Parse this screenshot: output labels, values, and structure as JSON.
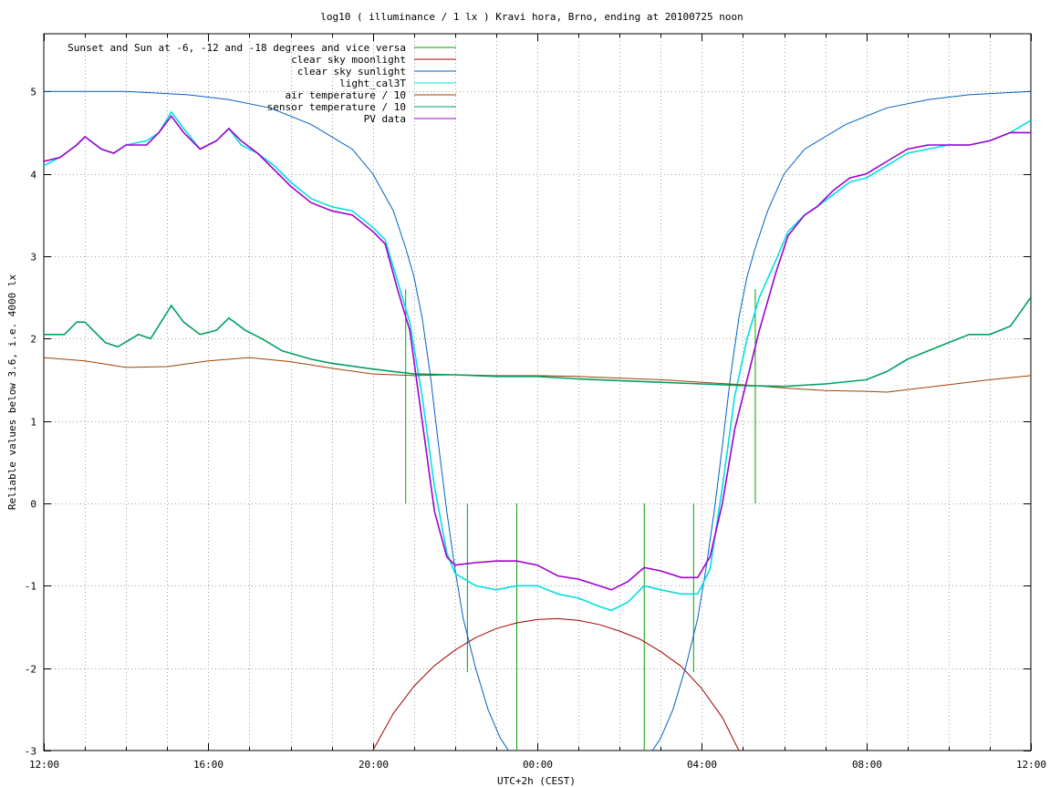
{
  "chart_data": {
    "type": "line",
    "title": "log10 ( illuminance / 1 lx ) Kravi hora, Brno, ending at 20100725 noon",
    "xlabel": "UTC+2h (CEST)",
    "ylabel": "Reliable values below 3.6, i.e. 4000 lx",
    "xlim": [
      12,
      36
    ],
    "ylim": [
      -3,
      5.7
    ],
    "x_ticks": [
      {
        "v": 12,
        "label": "12:00"
      },
      {
        "v": 16,
        "label": "16:00"
      },
      {
        "v": 20,
        "label": "20:00"
      },
      {
        "v": 24,
        "label": "00:00"
      },
      {
        "v": 28,
        "label": "04:00"
      },
      {
        "v": 32,
        "label": "08:00"
      },
      {
        "v": 36,
        "label": "12:00"
      }
    ],
    "x_minor_step": 1,
    "y_ticks": [
      {
        "v": 5,
        "label": "5"
      },
      {
        "v": 4,
        "label": "4"
      },
      {
        "v": 3,
        "label": "3"
      },
      {
        "v": 2,
        "label": "2"
      },
      {
        "v": 1,
        "label": "1"
      },
      {
        "v": 0,
        "label": "0"
      },
      {
        "v": -1,
        "label": "-1"
      },
      {
        "v": -2,
        "label": "-2"
      },
      {
        "v": -3,
        "label": "-3"
      }
    ],
    "grid": true,
    "legend_position": "top-left",
    "series": [
      {
        "name": "Sunset and Sun at -6, -12 and -18 degrees and vice versa",
        "color": "#00a000",
        "kind": "impulses",
        "points": [
          [
            20.8,
            2.6
          ],
          [
            22.3,
            -2.05
          ],
          [
            23.5,
            -3.0
          ],
          [
            26.6,
            -3.0
          ],
          [
            27.8,
            -2.05
          ],
          [
            29.3,
            2.6
          ]
        ]
      },
      {
        "name": "clear sky moonlight",
        "color": "#a00000",
        "kind": "line",
        "points": [
          [
            20.0,
            -3.0
          ],
          [
            20.5,
            -2.55
          ],
          [
            21.0,
            -2.22
          ],
          [
            21.5,
            -1.97
          ],
          [
            22.0,
            -1.78
          ],
          [
            22.5,
            -1.63
          ],
          [
            23.0,
            -1.52
          ],
          [
            23.5,
            -1.45
          ],
          [
            24.0,
            -1.41
          ],
          [
            24.5,
            -1.4
          ],
          [
            25.0,
            -1.42
          ],
          [
            25.5,
            -1.47
          ],
          [
            26.0,
            -1.55
          ],
          [
            26.5,
            -1.65
          ],
          [
            27.0,
            -1.8
          ],
          [
            27.5,
            -1.98
          ],
          [
            28.0,
            -2.25
          ],
          [
            28.5,
            -2.6
          ],
          [
            28.9,
            -3.0
          ]
        ]
      },
      {
        "name": "clear sky sunlight",
        "color": "#0060c0",
        "kind": "line",
        "points": [
          [
            12.0,
            5.0
          ],
          [
            14.0,
            5.0
          ],
          [
            15.5,
            4.96
          ],
          [
            16.5,
            4.9
          ],
          [
            17.5,
            4.8
          ],
          [
            18.5,
            4.6
          ],
          [
            19.5,
            4.3
          ],
          [
            20.0,
            4.0
          ],
          [
            20.5,
            3.55
          ],
          [
            20.8,
            3.1
          ],
          [
            21.0,
            2.75
          ],
          [
            21.2,
            2.25
          ],
          [
            21.4,
            1.55
          ],
          [
            21.6,
            0.7
          ],
          [
            21.8,
            -0.1
          ],
          [
            22.0,
            -0.8
          ],
          [
            22.2,
            -1.4
          ],
          [
            22.5,
            -2.0
          ],
          [
            22.8,
            -2.5
          ],
          [
            23.1,
            -2.85
          ],
          [
            23.3,
            -3.0
          ]
        ],
        "points2": [
          [
            26.8,
            -3.0
          ],
          [
            27.0,
            -2.85
          ],
          [
            27.3,
            -2.5
          ],
          [
            27.6,
            -2.0
          ],
          [
            27.9,
            -1.4
          ],
          [
            28.1,
            -0.8
          ],
          [
            28.3,
            -0.1
          ],
          [
            28.5,
            0.7
          ],
          [
            28.7,
            1.55
          ],
          [
            28.9,
            2.25
          ],
          [
            29.1,
            2.75
          ],
          [
            29.3,
            3.1
          ],
          [
            29.6,
            3.55
          ],
          [
            30.0,
            4.0
          ],
          [
            30.5,
            4.3
          ],
          [
            31.5,
            4.6
          ],
          [
            32.5,
            4.8
          ],
          [
            33.5,
            4.9
          ],
          [
            34.5,
            4.96
          ],
          [
            36.0,
            5.0
          ]
        ]
      },
      {
        "name": "light_cal3T",
        "color": "#00e0e0",
        "kind": "line",
        "points": [
          [
            12.0,
            4.1
          ],
          [
            12.4,
            4.2
          ],
          [
            12.8,
            4.35
          ],
          [
            13.0,
            4.45
          ],
          [
            13.4,
            4.3
          ],
          [
            13.7,
            4.25
          ],
          [
            14.0,
            4.35
          ],
          [
            14.5,
            4.4
          ],
          [
            14.8,
            4.5
          ],
          [
            15.1,
            4.75
          ],
          [
            15.4,
            4.55
          ],
          [
            15.8,
            4.3
          ],
          [
            16.2,
            4.4
          ],
          [
            16.5,
            4.55
          ],
          [
            16.8,
            4.35
          ],
          [
            17.2,
            4.25
          ],
          [
            17.6,
            4.1
          ],
          [
            18.0,
            3.9
          ],
          [
            18.5,
            3.7
          ],
          [
            19.0,
            3.6
          ],
          [
            19.5,
            3.55
          ],
          [
            20.0,
            3.35
          ],
          [
            20.3,
            3.2
          ],
          [
            20.6,
            2.7
          ],
          [
            20.9,
            2.2
          ],
          [
            21.2,
            1.3
          ],
          [
            21.5,
            0.2
          ],
          [
            21.8,
            -0.6
          ],
          [
            22.0,
            -0.85
          ],
          [
            22.5,
            -1.0
          ],
          [
            23.0,
            -1.05
          ],
          [
            23.5,
            -1.0
          ],
          [
            24.0,
            -1.0
          ],
          [
            24.5,
            -1.1
          ],
          [
            25.0,
            -1.15
          ],
          [
            25.5,
            -1.25
          ],
          [
            25.8,
            -1.3
          ],
          [
            26.2,
            -1.2
          ],
          [
            26.6,
            -1.0
          ],
          [
            27.0,
            -1.05
          ],
          [
            27.5,
            -1.1
          ],
          [
            27.9,
            -1.1
          ],
          [
            28.2,
            -0.8
          ],
          [
            28.5,
            0.2
          ],
          [
            28.8,
            1.3
          ],
          [
            29.1,
            2.0
          ],
          [
            29.4,
            2.5
          ],
          [
            29.8,
            2.95
          ],
          [
            30.1,
            3.3
          ],
          [
            30.5,
            3.5
          ],
          [
            30.8,
            3.6
          ],
          [
            31.2,
            3.75
          ],
          [
            31.6,
            3.9
          ],
          [
            32.0,
            3.95
          ],
          [
            32.5,
            4.1
          ],
          [
            33.0,
            4.25
          ],
          [
            33.5,
            4.3
          ],
          [
            34.0,
            4.35
          ],
          [
            34.5,
            4.35
          ],
          [
            35.0,
            4.4
          ],
          [
            35.5,
            4.5
          ],
          [
            36.0,
            4.65
          ]
        ]
      },
      {
        "name": "air temperature / 10",
        "color": "#a04000",
        "kind": "line",
        "points": [
          [
            12.0,
            1.77
          ],
          [
            13.0,
            1.73
          ],
          [
            14.0,
            1.65
          ],
          [
            15.0,
            1.66
          ],
          [
            16.0,
            1.73
          ],
          [
            17.0,
            1.77
          ],
          [
            18.0,
            1.72
          ],
          [
            19.0,
            1.64
          ],
          [
            20.0,
            1.57
          ],
          [
            21.0,
            1.55
          ],
          [
            22.0,
            1.56
          ],
          [
            23.0,
            1.55
          ],
          [
            24.0,
            1.55
          ],
          [
            25.0,
            1.54
          ],
          [
            26.0,
            1.52
          ],
          [
            27.0,
            1.5
          ],
          [
            28.0,
            1.47
          ],
          [
            29.0,
            1.44
          ],
          [
            30.0,
            1.4
          ],
          [
            31.0,
            1.37
          ],
          [
            32.0,
            1.36
          ],
          [
            32.5,
            1.35
          ],
          [
            33.0,
            1.38
          ],
          [
            34.0,
            1.44
          ],
          [
            35.0,
            1.5
          ],
          [
            36.0,
            1.55
          ]
        ]
      },
      {
        "name": "sensor temperature / 10",
        "color": "#00a060",
        "kind": "line",
        "points": [
          [
            12.0,
            2.05
          ],
          [
            12.5,
            2.05
          ],
          [
            12.8,
            2.2
          ],
          [
            13.0,
            2.2
          ],
          [
            13.5,
            1.95
          ],
          [
            13.8,
            1.9
          ],
          [
            14.3,
            2.05
          ],
          [
            14.6,
            2.0
          ],
          [
            15.1,
            2.4
          ],
          [
            15.4,
            2.2
          ],
          [
            15.8,
            2.05
          ],
          [
            16.2,
            2.1
          ],
          [
            16.5,
            2.25
          ],
          [
            16.9,
            2.1
          ],
          [
            17.3,
            2.0
          ],
          [
            17.8,
            1.85
          ],
          [
            18.5,
            1.75
          ],
          [
            19.0,
            1.7
          ],
          [
            20.0,
            1.63
          ],
          [
            21.0,
            1.57
          ],
          [
            22.0,
            1.56
          ],
          [
            23.0,
            1.54
          ],
          [
            24.0,
            1.54
          ],
          [
            25.0,
            1.51
          ],
          [
            26.0,
            1.49
          ],
          [
            27.0,
            1.47
          ],
          [
            28.0,
            1.45
          ],
          [
            29.0,
            1.43
          ],
          [
            30.0,
            1.42
          ],
          [
            31.0,
            1.45
          ],
          [
            32.0,
            1.5
          ],
          [
            32.5,
            1.6
          ],
          [
            33.0,
            1.75
          ],
          [
            33.5,
            1.85
          ],
          [
            34.0,
            1.95
          ],
          [
            34.5,
            2.05
          ],
          [
            35.0,
            2.05
          ],
          [
            35.5,
            2.15
          ],
          [
            36.0,
            2.5
          ]
        ]
      },
      {
        "name": "PV data",
        "color": "#a000d0",
        "kind": "line",
        "points": [
          [
            12.0,
            4.15
          ],
          [
            12.4,
            4.2
          ],
          [
            12.8,
            4.35
          ],
          [
            13.0,
            4.45
          ],
          [
            13.4,
            4.3
          ],
          [
            13.7,
            4.25
          ],
          [
            14.0,
            4.35
          ],
          [
            14.5,
            4.35
          ],
          [
            14.8,
            4.5
          ],
          [
            15.1,
            4.7
          ],
          [
            15.4,
            4.5
          ],
          [
            15.8,
            4.3
          ],
          [
            16.2,
            4.4
          ],
          [
            16.5,
            4.55
          ],
          [
            16.8,
            4.4
          ],
          [
            17.2,
            4.25
          ],
          [
            17.6,
            4.05
          ],
          [
            18.0,
            3.85
          ],
          [
            18.5,
            3.65
          ],
          [
            19.0,
            3.55
          ],
          [
            19.5,
            3.5
          ],
          [
            20.0,
            3.3
          ],
          [
            20.3,
            3.15
          ],
          [
            20.6,
            2.6
          ],
          [
            20.9,
            2.1
          ],
          [
            21.2,
            1.0
          ],
          [
            21.5,
            -0.1
          ],
          [
            21.8,
            -0.65
          ],
          [
            22.0,
            -0.75
          ],
          [
            22.5,
            -0.72
          ],
          [
            23.0,
            -0.7
          ],
          [
            23.5,
            -0.7
          ],
          [
            24.0,
            -0.75
          ],
          [
            24.5,
            -0.88
          ],
          [
            25.0,
            -0.92
          ],
          [
            25.5,
            -1.0
          ],
          [
            25.8,
            -1.05
          ],
          [
            26.2,
            -0.95
          ],
          [
            26.6,
            -0.78
          ],
          [
            27.0,
            -0.82
          ],
          [
            27.5,
            -0.9
          ],
          [
            27.9,
            -0.9
          ],
          [
            28.2,
            -0.65
          ],
          [
            28.5,
            0.0
          ],
          [
            28.8,
            0.9
          ],
          [
            29.1,
            1.5
          ],
          [
            29.4,
            2.1
          ],
          [
            29.8,
            2.8
          ],
          [
            30.1,
            3.25
          ],
          [
            30.5,
            3.5
          ],
          [
            30.8,
            3.6
          ],
          [
            31.2,
            3.8
          ],
          [
            31.6,
            3.95
          ],
          [
            32.0,
            4.0
          ],
          [
            32.5,
            4.15
          ],
          [
            33.0,
            4.3
          ],
          [
            33.5,
            4.35
          ],
          [
            34.0,
            4.35
          ],
          [
            34.5,
            4.35
          ],
          [
            35.0,
            4.4
          ],
          [
            35.5,
            4.5
          ],
          [
            36.0,
            4.5
          ]
        ]
      }
    ]
  }
}
